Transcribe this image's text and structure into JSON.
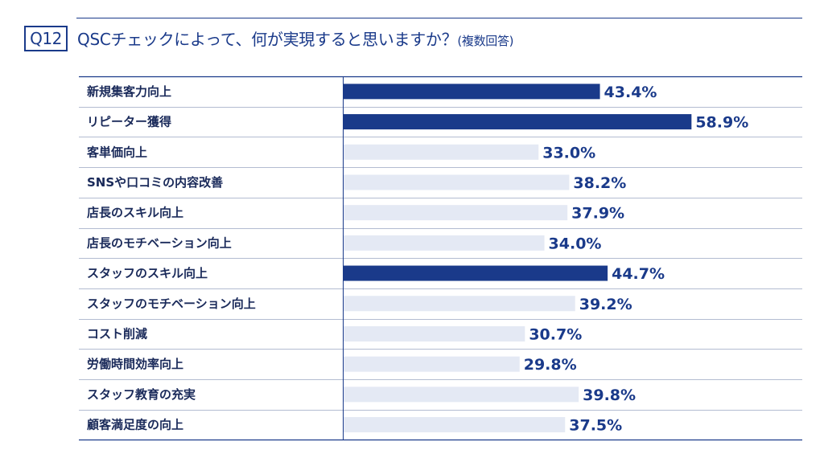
{
  "header": {
    "question_number": "Q12",
    "question_text": "QSCチェックによって、何が実現すると思いますか？",
    "question_note": "(複数回答)"
  },
  "colors": {
    "highlight_bar": "#1a3a8a",
    "normal_bar": "#e4e9f4",
    "text": "#1a3a8a"
  },
  "chart_data": {
    "type": "bar",
    "orientation": "horizontal",
    "categories": [
      "新規集客力向上",
      "リピーター獲得",
      "客単価向上",
      "SNSや口コミの内容改善",
      "店長のスキル向上",
      "店長のモチベーション向上",
      "スタッフのスキル向上",
      "スタッフのモチベーション向上",
      "コスト削減",
      "労働時間効率向上",
      "スタッフ教育の充実",
      "顧客満足度の向上"
    ],
    "values": [
      43.4,
      58.9,
      33.0,
      38.2,
      37.9,
      34.0,
      44.7,
      39.2,
      30.7,
      29.8,
      39.8,
      37.5
    ],
    "value_labels": [
      "43.4%",
      "58.9%",
      "33.0%",
      "38.2%",
      "37.9%",
      "34.0%",
      "44.7%",
      "39.2%",
      "30.7%",
      "29.8%",
      "39.8%",
      "37.5%"
    ],
    "highlighted": [
      true,
      true,
      false,
      false,
      false,
      false,
      true,
      false,
      false,
      false,
      false,
      false
    ],
    "unit": "%",
    "xlim": [
      0,
      100
    ]
  }
}
